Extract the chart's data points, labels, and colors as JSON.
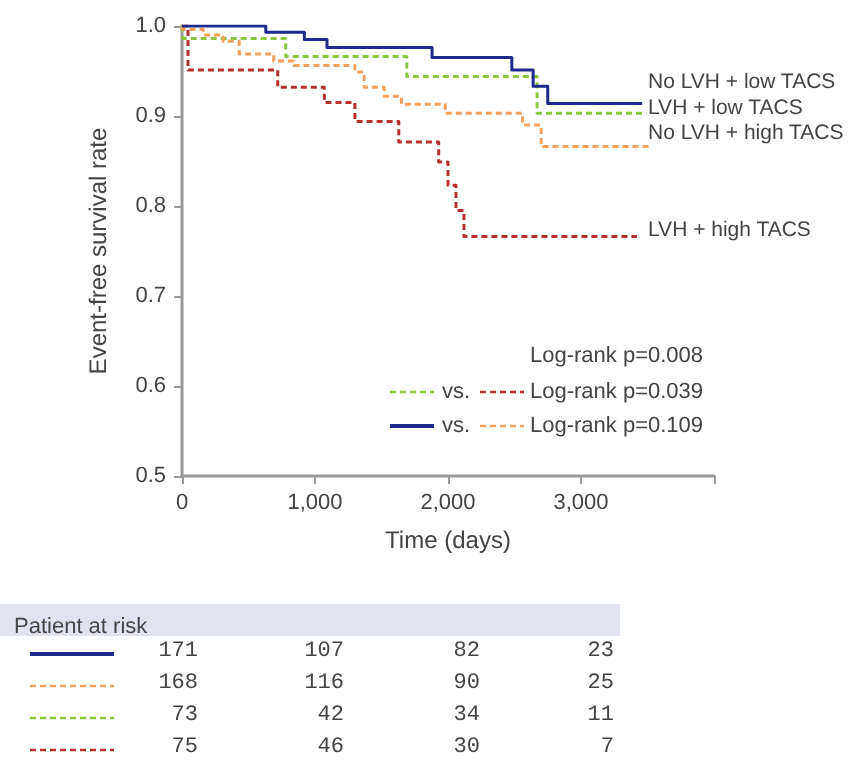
{
  "chart_data": [
    {
      "type": "step",
      "xlabel": "Time (days)",
      "ylabel": "Event-free survival rate",
      "xlim": [
        0,
        4000
      ],
      "xticks": [
        0,
        {
          "value": 1000,
          "label": "1,000"
        },
        {
          "value": 2000,
          "label": "2,000"
        },
        {
          "value": 3000,
          "label": "3,000"
        },
        {
          "value": 4000,
          "label": null
        }
      ],
      "ylim": [
        0.5,
        1.0
      ],
      "yticks": [
        {
          "value": 0.5,
          "label": "0.5"
        },
        {
          "value": 0.6,
          "label": "0.6"
        },
        {
          "value": 0.7,
          "label": "0.7"
        },
        {
          "value": 0.8,
          "label": "0.8"
        },
        {
          "value": 0.9,
          "label": "0.9"
        },
        {
          "value": 1.0,
          "label": "1.0"
        }
      ],
      "grid": false,
      "legend": false,
      "series": [
        {
          "name": "No LVH + low TACS",
          "color": "#1f2a8c",
          "line_style": "solid",
          "x": [
            0,
            630,
            920,
            1090,
            1880,
            2480,
            2640,
            2750,
            3460
          ],
          "values": [
            1.0,
            0.993,
            0.985,
            0.976,
            0.965,
            0.951,
            0.933,
            0.914,
            0.914
          ]
        },
        {
          "name": "No LVH + high TACS",
          "color": "#f4a05e",
          "line_style": "dashed",
          "x": [
            0,
            10,
            160,
            310,
            430,
            690,
            840,
            1300,
            1370,
            1520,
            1650,
            1980,
            2560,
            2700,
            3520
          ],
          "values": [
            1.0,
            0.996,
            0.99,
            0.983,
            0.969,
            0.961,
            0.956,
            0.949,
            0.932,
            0.922,
            0.913,
            0.903,
            0.89,
            0.866,
            0.866
          ]
        },
        {
          "name": "LVH + low TACS",
          "color": "#8cc63f",
          "line_style": "dashed",
          "x": [
            0,
            10,
            780,
            1690,
            2670,
            3460
          ],
          "values": [
            1.0,
            0.986,
            0.966,
            0.944,
            0.903,
            0.903
          ]
        },
        {
          "name": "LVH + high TACS",
          "color": "#b5302f",
          "line_style": "dashed",
          "x": [
            0,
            45,
            720,
            1070,
            1300,
            1630,
            1930,
            2000,
            2060,
            2120,
            3420
          ],
          "values": [
            1.0,
            0.951,
            0.932,
            0.915,
            0.894,
            0.871,
            0.849,
            0.823,
            0.795,
            0.766,
            0.766
          ]
        }
      ],
      "annotations": [
        "Log-rank p=0.008",
        "vs.",
        "Log-rank p=0.039",
        "vs.",
        "Log-rank p=0.109"
      ]
    },
    {
      "type": "other",
      "title": "Patient at risk",
      "annotations": [
        "171",
        "107",
        "82",
        "23",
        "168",
        "116",
        "90",
        "25",
        "73",
        "42",
        "34",
        "11",
        "75",
        "46",
        "30",
        "7"
      ]
    }
  ]
}
